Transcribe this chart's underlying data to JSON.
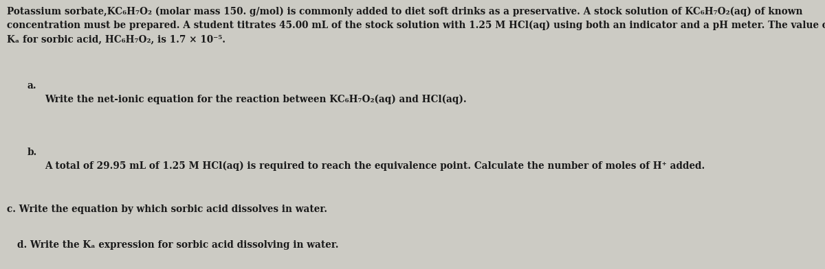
{
  "bg_color": "#cccbc4",
  "text_color": "#1a1a1a",
  "figsize": [
    12.0,
    3.92
  ],
  "dpi": 100,
  "line1": "Potassium sorbate,KC₆H₇O₂ (molar mass 150. g/mol) is commonly added to diet soft drinks as a preservative. A stock solution of KC₆H₇O₂(aq) of known",
  "line2": "concentration must be prepared. A student titrates 45.00 mL of the stock solution with 1.25 M HCl(aq) using both an indicator and a pH meter. The value of",
  "line3": "Kₐ for sorbic acid, HC₆H₇O₂, is 1.7 × 10⁻⁵.",
  "item_a_label": "a.",
  "item_a_text": "Write the net-ionic equation for the reaction between KC₆H₇O₂(aq) and HCl(aq).",
  "item_b_label": "b.",
  "item_b_text": "A total of 29.95 mL of 1.25 M HCl(aq) is required to reach the equivalence point. Calculate the number of moles of H⁺ added.",
  "item_c_text": "c. Write the equation by which sorbic acid dissolves in water.",
  "item_d_text": "d. Write the Kₐ expression for sorbic acid dissolving in water.",
  "font_size": 9.8,
  "font_family": "DejaVu Serif"
}
